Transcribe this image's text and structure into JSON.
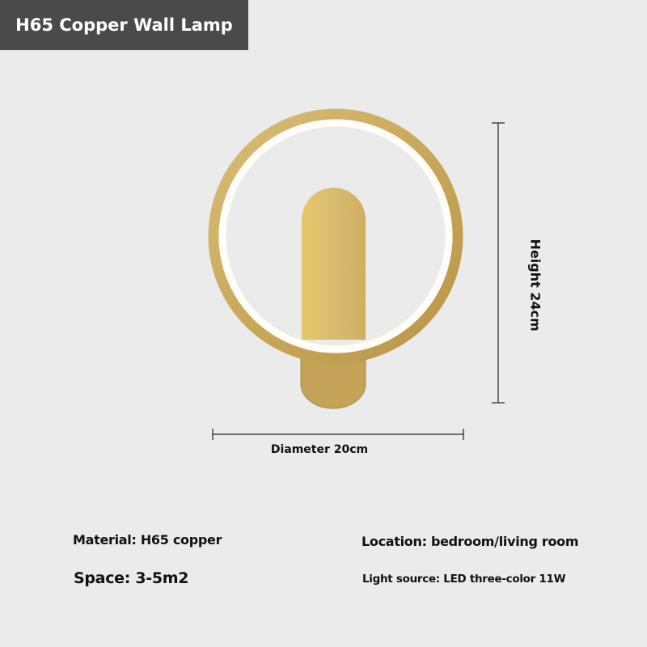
{
  "title": "H65 Copper Wall Lamp",
  "dimensions": {
    "height_label": "Height 24cm",
    "diameter_label": "Diameter 20cm"
  },
  "specs": {
    "material": "Material: H65 copper",
    "location": "Location: bedroom/living room",
    "space": "Space: 3-5m2",
    "light_source": "Light source: LED three-color 11W"
  },
  "colors": {
    "background": "#ebebeb",
    "title_bar": "#4a4a4a",
    "gold": "#c9a85a"
  }
}
